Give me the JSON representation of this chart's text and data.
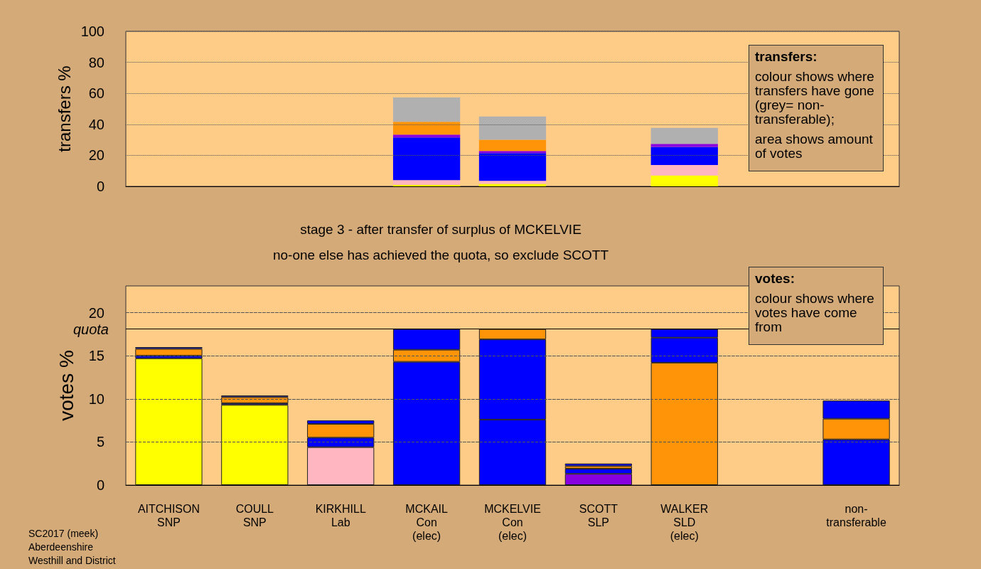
{
  "chart_data": [
    {
      "type": "bar",
      "stacked": true,
      "ylabel": "transfers %",
      "categories": [
        null,
        null,
        null,
        null,
        null,
        null,
        null,
        null,
        null
      ],
      "series": [
        {
          "color": "#ffff00",
          "values": [
            null,
            null,
            null,
            1,
            1.6,
            null,
            7,
            null,
            null
          ]
        },
        {
          "color": "#ffb6c1",
          "values": [
            null,
            null,
            null,
            3,
            1.9,
            null,
            6.8,
            null,
            null
          ]
        },
        {
          "color": "#0000ff",
          "values": [
            null,
            null,
            null,
            27.5,
            17.9,
            null,
            11.7,
            null,
            null
          ]
        },
        {
          "color": "#8800e0",
          "values": [
            null,
            null,
            null,
            1.9,
            1.4,
            null,
            1.9,
            null,
            null
          ]
        },
        {
          "color": "#ff9408",
          "values": [
            null,
            null,
            null,
            8.2,
            7.2,
            null,
            null,
            null,
            null
          ]
        },
        {
          "color": "#b0b0b0",
          "values": [
            null,
            null,
            null,
            15.7,
            15.1,
            null,
            10.3,
            null,
            null
          ]
        }
      ],
      "ylim": [
        0,
        100
      ],
      "yticks": [
        0,
        20,
        40,
        60,
        80,
        100
      ],
      "grid": true,
      "tick_labels": "y",
      "annotations": [
        "transfers:",
        "colour shows where transfers have gone (grey= non-transferable);",
        "area shows amount of votes"
      ]
    },
    {
      "type": "bar",
      "stacked": true,
      "ylabel": "votes %",
      "title": "stage 3 - after transfer of surplus of MCKELVIE",
      "subtitle": "no-one else has achieved the quota, so exclude SCOTT",
      "categories": [
        "AITCHISON\nSNP",
        "COULL\nSNP",
        "KIRKHILL\nLab",
        "MCKAIL\nCon\n(elec)",
        "MCKELVIE\nCon\n(elec)",
        "SCOTT\nSLP",
        "WALKER\nSLD\n(elec)",
        null,
        "non-\ntransferable"
      ],
      "series": [
        {
          "colors": [
            "#ffff00",
            "#ffff00",
            "#ffb6c1",
            "#0000ff",
            "#0000ff",
            "#8800e0",
            "#ff9408",
            null,
            "#0000ff"
          ],
          "values": [
            14.7,
            9.3,
            4.4,
            14.3,
            7.6,
            1.3,
            14.2,
            null,
            5.3
          ]
        },
        {
          "colors": [
            "#0000ff",
            "#0000ff",
            "#0000ff",
            "#ff9408",
            "#0000ff",
            "#0000ff",
            "#0000ff",
            null,
            "#ff9408"
          ],
          "values": [
            0.3,
            0.2,
            1.1,
            1.4,
            9.3,
            0.6,
            2.9,
            null,
            2.4
          ]
        },
        {
          "colors": [
            "#ff9408",
            "#ff9408",
            "#ff9408",
            "#0000ff",
            "#ff9408",
            "#ff9408",
            "#0000ff",
            null,
            "#0000ff"
          ],
          "values": [
            0.8,
            0.7,
            1.6,
            2.4,
            1.2,
            0.3,
            1.0,
            null,
            2.1
          ]
        },
        {
          "colors": [
            "#0000ff",
            "#0000ff",
            "#0000ff",
            null,
            null,
            "#0000ff",
            null,
            null,
            null
          ],
          "values": [
            0.2,
            0.2,
            0.4,
            null,
            null,
            0.3,
            null,
            null,
            null
          ]
        }
      ],
      "ylim": [
        0,
        23.1
      ],
      "yticks": [
        0,
        5,
        10,
        15,
        20
      ],
      "grid": true,
      "ref_lines": [
        {
          "axis": "y",
          "value": 18.1,
          "label": "quota"
        }
      ],
      "annotations": [
        "votes:",
        "colour shows where votes have come from",
        "SC2017 (meek)",
        "Aberdeenshire",
        "Westhill and District"
      ]
    }
  ]
}
